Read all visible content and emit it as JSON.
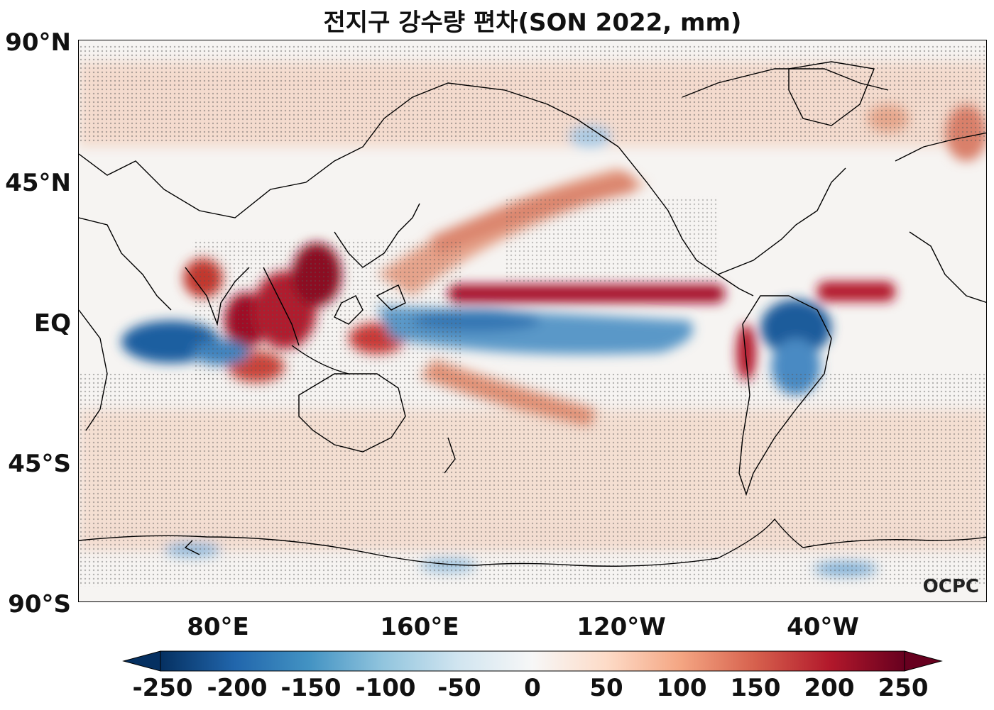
{
  "title": "전지구 강수량 편차(SON 2022, mm)",
  "credit": "OCPC",
  "lat_labels": [
    "90°N",
    "45°N",
    "EQ",
    "45°S",
    "90°S"
  ],
  "lon_labels": [
    "80°E",
    "160°E",
    "120°W",
    "40°W"
  ],
  "colorbar": {
    "labels": [
      "-250",
      "-200",
      "-150",
      "-100",
      "-50",
      "0",
      "50",
      "100",
      "150",
      "200",
      "250"
    ],
    "min_color": "#053061",
    "mid_color": "#f7f7f7",
    "max_color": "#67001f",
    "extend": "both"
  },
  "colors": {
    "dry": "#2166ac",
    "wet": "#b2182b",
    "stipple": "#555555",
    "coastline": "#000000"
  }
}
